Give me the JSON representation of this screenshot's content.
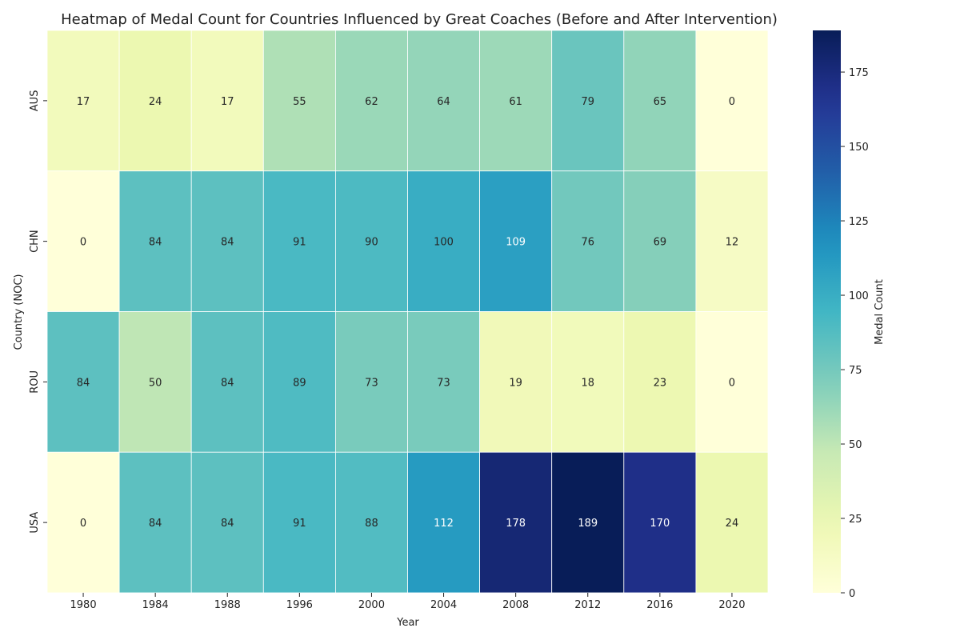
{
  "chart_data": {
    "type": "heatmap",
    "title": "Heatmap of Medal Count for Countries Influenced by Great Coaches (Before and After Intervention)",
    "xlabel": "Year",
    "ylabel": "Country (NOC)",
    "x": [
      "1980",
      "1984",
      "1988",
      "1996",
      "2000",
      "2004",
      "2008",
      "2012",
      "2016",
      "2020"
    ],
    "y": [
      "AUS",
      "CHN",
      "ROU",
      "USA"
    ],
    "values": [
      [
        17,
        24,
        17,
        55,
        62,
        64,
        61,
        79,
        65,
        0
      ],
      [
        0,
        84,
        84,
        91,
        90,
        100,
        109,
        76,
        69,
        12
      ],
      [
        84,
        50,
        84,
        89,
        73,
        73,
        19,
        18,
        23,
        0
      ],
      [
        0,
        84,
        84,
        91,
        88,
        112,
        178,
        189,
        170,
        24
      ]
    ],
    "colorbar": {
      "label": "Medal Count",
      "range": [
        0,
        189
      ],
      "ticks": [
        0,
        25,
        50,
        75,
        100,
        125,
        150,
        175
      ],
      "colormap": "YlGnBu"
    }
  }
}
